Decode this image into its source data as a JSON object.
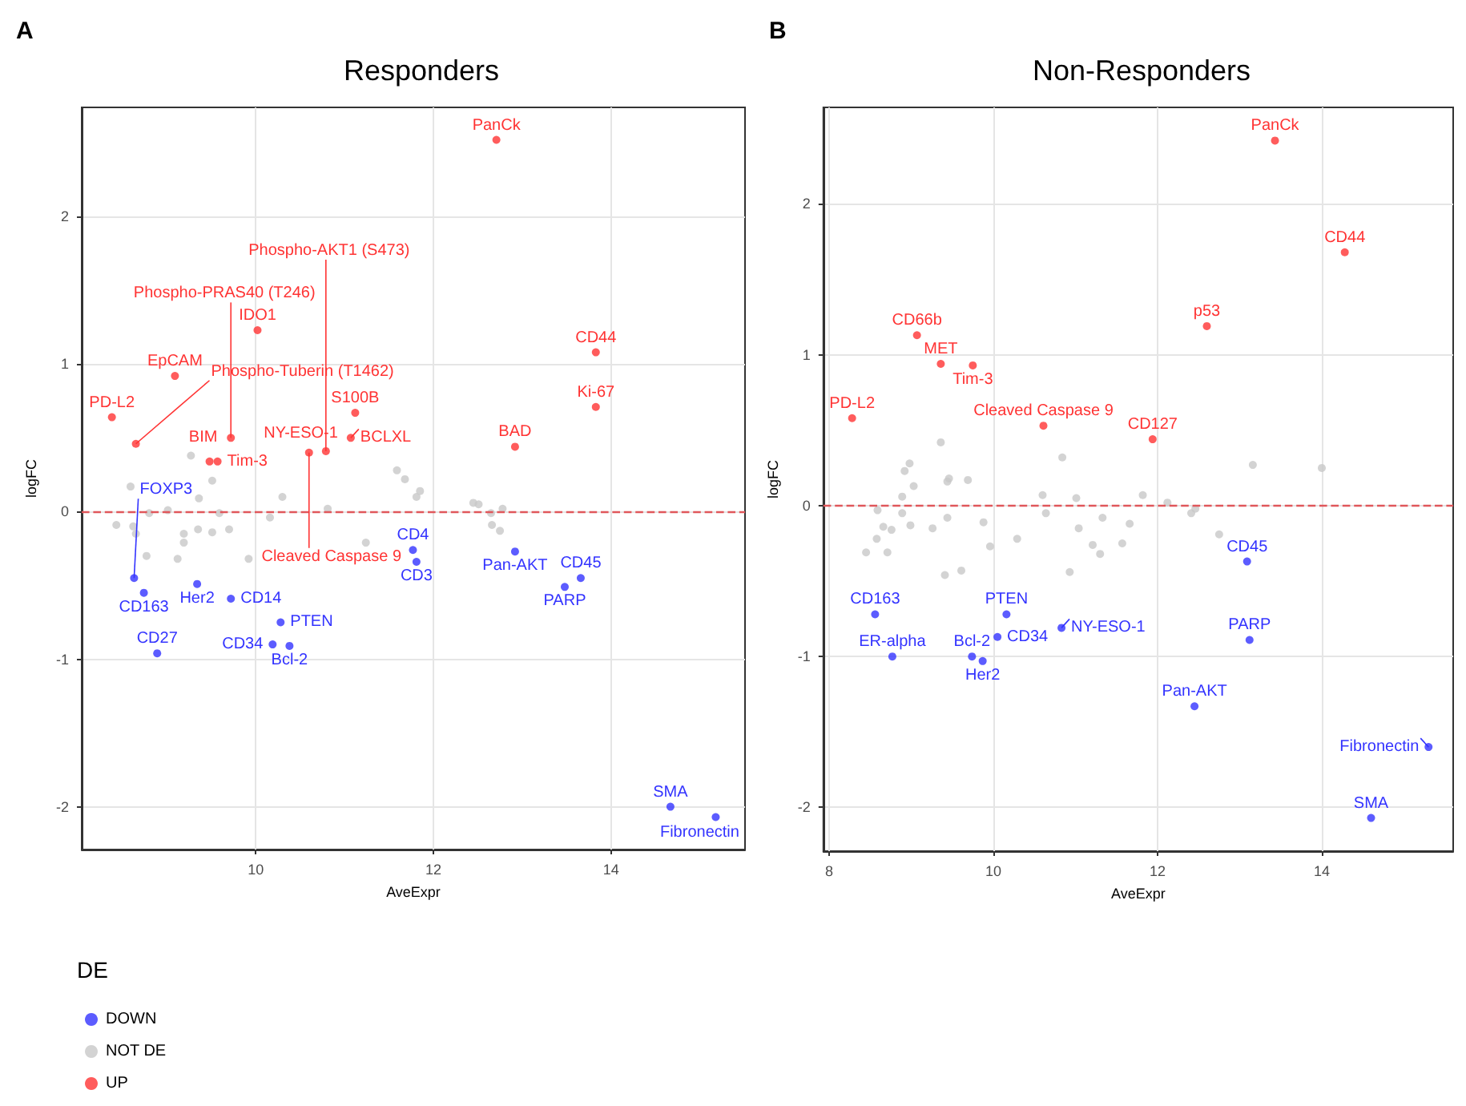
{
  "chart_data": [
    {
      "type": "scatter",
      "title": "Responders",
      "xlabel": "AveExpr",
      "ylabel": "logFC",
      "legend_title": "DE",
      "legend": "bottom left",
      "grid": true,
      "marker": "circle",
      "xlim": [
        8.04,
        15.51
      ],
      "ylim": [
        -2.29,
        2.74
      ],
      "xticks": [
        10,
        12,
        14
      ],
      "yticks": [
        -2,
        -1,
        0,
        1,
        2
      ],
      "ref_lines": [
        {
          "axis": "y",
          "value": 0,
          "color": "#e0575b",
          "line_style": "dashed"
        }
      ],
      "series": [
        {
          "name": "DOWN",
          "color": "#3333ff",
          "x": [
            8.63,
            8.74,
            8.89,
            9.34,
            9.72,
            10.28,
            10.19,
            10.38,
            11.77,
            11.81,
            12.92,
            13.66,
            13.48,
            14.67,
            15.18
          ],
          "values": [
            -0.45,
            -0.55,
            -0.96,
            -0.49,
            -0.59,
            -0.75,
            -0.9,
            -0.91,
            -0.26,
            -0.34,
            -0.27,
            -0.45,
            -0.51,
            -2.0,
            -2.07
          ]
        },
        {
          "name": "NOT DE",
          "color": "#c8c8c8",
          "x": [
            8.43,
            8.59,
            8.62,
            8.65,
            8.77,
            8.8,
            9.01,
            9.12,
            9.19,
            9.19,
            9.27,
            9.35,
            9.36,
            9.51,
            9.51,
            9.59,
            9.7,
            9.92,
            10.16,
            10.3,
            10.81,
            11.24,
            11.59,
            11.68,
            11.81,
            11.85,
            12.45,
            12.51,
            12.65,
            12.66,
            12.75,
            12.78
          ],
          "values": [
            -0.09,
            0.17,
            -0.1,
            -0.15,
            -0.3,
            -0.01,
            0.01,
            -0.32,
            -0.15,
            -0.21,
            0.38,
            -0.12,
            0.09,
            0.21,
            -0.14,
            -0.01,
            -0.12,
            -0.32,
            -0.04,
            0.1,
            0.02,
            -0.21,
            0.28,
            0.22,
            0.1,
            0.14,
            0.06,
            0.05,
            -0.01,
            -0.09,
            -0.13,
            0.02
          ]
        },
        {
          "name": "UP",
          "color": "#ff3333",
          "x": [
            10.02,
            9.09,
            8.38,
            8.65,
            9.72,
            9.48,
            9.57,
            10.6,
            11.12,
            11.07,
            10.79,
            12.71,
            13.83,
            13.83,
            12.92
          ],
          "values": [
            1.23,
            0.92,
            0.64,
            0.46,
            0.5,
            0.34,
            0.34,
            0.4,
            0.67,
            0.5,
            0.41,
            2.52,
            1.08,
            0.71,
            0.44
          ]
        }
      ],
      "annotations": [
        "A",
        {
          "text": "FOXP3",
          "x": 8.63,
          "y": -0.45
        },
        {
          "text": "CD163",
          "x": 8.74,
          "y": -0.55
        },
        {
          "text": "CD27",
          "x": 8.89,
          "y": -0.96
        },
        {
          "text": "Her2",
          "x": 9.34,
          "y": -0.49
        },
        {
          "text": "CD14",
          "x": 9.72,
          "y": -0.59
        },
        {
          "text": "PTEN",
          "x": 10.28,
          "y": -0.75
        },
        {
          "text": "CD34",
          "x": 10.19,
          "y": -0.9
        },
        {
          "text": "Bcl-2",
          "x": 10.38,
          "y": -0.91
        },
        {
          "text": "CD4",
          "x": 11.77,
          "y": -0.26
        },
        {
          "text": "CD3",
          "x": 11.81,
          "y": -0.34
        },
        {
          "text": "Pan-AKT",
          "x": 12.92,
          "y": -0.27
        },
        {
          "text": "CD45",
          "x": 13.66,
          "y": -0.45
        },
        {
          "text": "PARP",
          "x": 13.48,
          "y": -0.51
        },
        {
          "text": "SMA",
          "x": 14.67,
          "y": -2.0
        },
        {
          "text": "Fibronectin",
          "x": 15.18,
          "y": -2.07
        },
        {
          "text": "IDO1",
          "x": 10.02,
          "y": 1.23
        },
        {
          "text": "EpCAM",
          "x": 9.09,
          "y": 0.92
        },
        {
          "text": "PD-L2",
          "x": 8.38,
          "y": 0.64
        },
        {
          "text": "Phospho-Tuberin (T1462)",
          "x": 8.65,
          "y": 0.46
        },
        {
          "text": "Phospho-PRAS40 (T246)",
          "x": 9.72,
          "y": 0.5
        },
        {
          "text": "BIM",
          "x": 9.48,
          "y": 0.34
        },
        {
          "text": "Tim-3",
          "x": 9.57,
          "y": 0.34
        },
        {
          "text": "NY-ESO-1",
          "x": 10.58,
          "y": 0.42
        },
        {
          "text": "Cleaved Caspase 9",
          "x": 10.6,
          "y": 0.4
        },
        {
          "text": "S100B",
          "x": 11.12,
          "y": 0.67
        },
        {
          "text": "BCLXL",
          "x": 11.07,
          "y": 0.5
        },
        {
          "text": "Phospho-AKT1 (S473)",
          "x": 10.79,
          "y": 0.41
        },
        {
          "text": "PanCk",
          "x": 12.71,
          "y": 2.52
        },
        {
          "text": "CD44",
          "x": 13.83,
          "y": 1.08
        },
        {
          "text": "Ki-67",
          "x": 13.83,
          "y": 0.71
        },
        {
          "text": "BAD",
          "x": 12.92,
          "y": 0.44
        }
      ]
    },
    {
      "type": "scatter",
      "title": "Non-Responders",
      "xlabel": "AveExpr",
      "ylabel": "logFC",
      "grid": true,
      "marker": "circle",
      "xlim": [
        7.93,
        15.6
      ],
      "ylim": [
        -2.29,
        2.64
      ],
      "xticks": [
        8,
        10,
        12,
        14
      ],
      "yticks": [
        -2,
        -1,
        0,
        1,
        2
      ],
      "ref_lines": [
        {
          "axis": "y",
          "value": 0,
          "color": "#e0575b",
          "line_style": "dashed"
        }
      ],
      "series": [
        {
          "color": "#3333ff",
          "x": [
            8.56,
            8.77,
            9.74,
            9.87,
            10.05,
            10.16,
            10.83,
            13.09,
            13.12,
            12.45,
            15.3,
            14.6
          ],
          "values": [
            -0.72,
            -1.0,
            -1.0,
            -1.03,
            -0.87,
            -0.72,
            -0.81,
            -0.37,
            -0.89,
            -1.33,
            -1.6,
            -2.07
          ]
        },
        {
          "color": "#c8c8c8",
          "x": [
            8.45,
            8.58,
            8.59,
            8.66,
            8.71,
            8.76,
            8.89,
            8.89,
            8.92,
            8.98,
            8.99,
            9.03,
            9.26,
            9.36,
            9.41,
            9.44,
            9.44,
            9.46,
            9.61,
            9.69,
            9.88,
            9.96,
            10.29,
            10.6,
            10.64,
            10.84,
            10.93,
            11.01,
            11.04,
            11.21,
            11.3,
            11.33,
            11.57,
            11.66,
            11.82,
            12.12,
            12.41,
            12.46,
            12.75,
            13.16,
            14.0
          ],
          "values": [
            -0.31,
            -0.22,
            -0.03,
            -0.14,
            -0.31,
            -0.16,
            0.06,
            -0.05,
            0.23,
            0.28,
            -0.13,
            0.13,
            -0.15,
            0.42,
            -0.46,
            -0.08,
            0.16,
            0.18,
            -0.43,
            0.17,
            -0.11,
            -0.27,
            -0.22,
            0.07,
            -0.05,
            0.32,
            -0.44,
            0.05,
            -0.15,
            -0.26,
            -0.32,
            -0.08,
            -0.25,
            -0.12,
            0.07,
            0.02,
            -0.05,
            -0.02,
            -0.19,
            0.27,
            0.25
          ]
        },
        {
          "color": "#ff3333",
          "x": [
            8.28,
            9.07,
            9.36,
            9.75,
            10.61,
            11.94,
            12.6,
            14.28,
            13.43
          ],
          "values": [
            0.58,
            1.13,
            0.94,
            0.93,
            0.53,
            0.44,
            1.19,
            1.68,
            2.42
          ]
        }
      ],
      "annotations": [
        "B",
        {
          "text": "PD-L2",
          "x": 8.28,
          "y": 0.58
        },
        {
          "text": "CD66b",
          "x": 9.07,
          "y": 1.13
        },
        {
          "text": "MET",
          "x": 9.36,
          "y": 0.94
        },
        {
          "text": "Tim-3",
          "x": 9.75,
          "y": 0.93
        },
        {
          "text": "Cleaved Caspase 9",
          "x": 10.61,
          "y": 0.53
        },
        {
          "text": "CD127",
          "x": 11.94,
          "y": 0.44
        },
        {
          "text": "p53",
          "x": 12.6,
          "y": 1.19
        },
        {
          "text": "CD44",
          "x": 14.28,
          "y": 1.68
        },
        {
          "text": "PanCk",
          "x": 13.43,
          "y": 2.42
        },
        {
          "text": "CD163",
          "x": 8.56,
          "y": -0.72
        },
        {
          "text": "ER-alpha",
          "x": 8.77,
          "y": -1.0
        },
        {
          "text": "Bcl-2",
          "x": 9.74,
          "y": -1.0
        },
        {
          "text": "Her2",
          "x": 9.87,
          "y": -1.03
        },
        {
          "text": "CD34",
          "x": 10.05,
          "y": -0.87
        },
        {
          "text": "PTEN",
          "x": 10.16,
          "y": -0.72
        },
        {
          "text": "NY-ESO-1",
          "x": 10.83,
          "y": -0.81
        },
        {
          "text": "CD45",
          "x": 13.09,
          "y": -0.37
        },
        {
          "text": "PARP",
          "x": 13.12,
          "y": -0.89
        },
        {
          "text": "Pan-AKT",
          "x": 12.45,
          "y": -1.33
        },
        {
          "text": "Fibronectin",
          "x": 15.3,
          "y": -1.6
        },
        {
          "text": "SMA",
          "x": 14.6,
          "y": -2.07
        }
      ]
    }
  ]
}
